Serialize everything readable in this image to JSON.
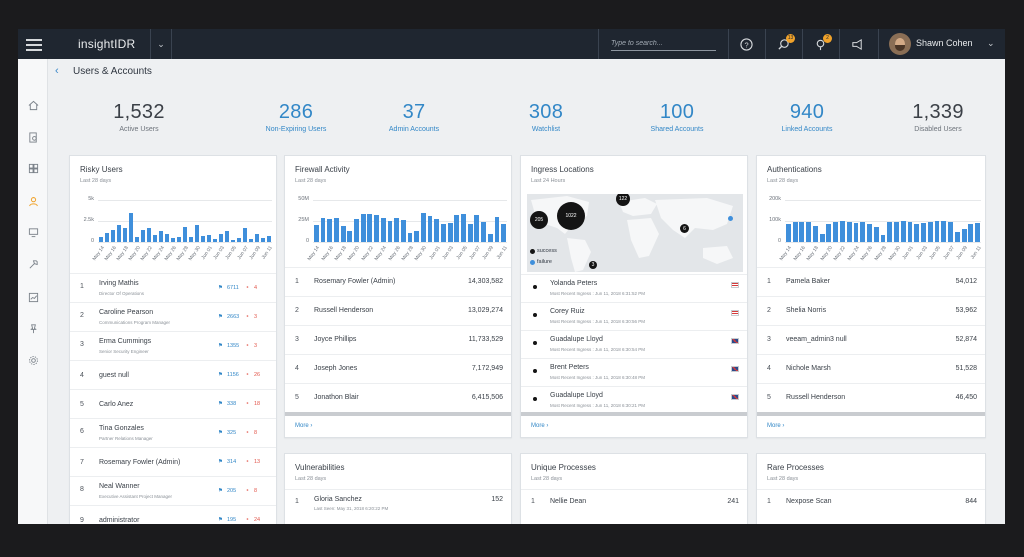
{
  "app": {
    "brand": "insightIDR"
  },
  "search": {
    "placeholder": "Type to search..."
  },
  "notifications": {
    "alerts_count": "13",
    "tips_count": "2"
  },
  "user": {
    "name": "Shawn Cohen"
  },
  "page": {
    "title": "Users & Accounts"
  },
  "stats": [
    {
      "value": "1,532",
      "label": "Active Users"
    },
    {
      "value": "286",
      "label": "Non-Expiring Users"
    },
    {
      "value": "37",
      "label": "Admin Accounts"
    },
    {
      "value": "308",
      "label": "Watchlist"
    },
    {
      "value": "100",
      "label": "Shared Accounts"
    },
    {
      "value": "940",
      "label": "Linked Accounts"
    },
    {
      "value": "1,339",
      "label": "Disabled Users"
    }
  ],
  "risky_users": {
    "title": "Risky Users",
    "subtitle": "Last 28 days",
    "y_ticks": [
      "5k",
      "2.5k",
      "0"
    ],
    "rows": [
      {
        "rank": "1",
        "name": "Irving Mathis",
        "role": "Director Of Operations",
        "flags": "6711",
        "locations": "4"
      },
      {
        "rank": "2",
        "name": "Caroline Pearson",
        "role": "Communications Program Manager",
        "flags": "2663",
        "locations": "3"
      },
      {
        "rank": "3",
        "name": "Erma Cummings",
        "role": "Senior Security Engineer",
        "flags": "1355",
        "locations": "3"
      },
      {
        "rank": "4",
        "name": "guest null",
        "role": "",
        "flags": "1156",
        "locations": "26"
      },
      {
        "rank": "5",
        "name": "Carlo Anez",
        "role": "",
        "flags": "338",
        "locations": "18"
      },
      {
        "rank": "6",
        "name": "Tina Gonzales",
        "role": "Partner Relations Manager",
        "flags": "325",
        "locations": "8"
      },
      {
        "rank": "7",
        "name": "Rosemary Fowler (Admin)",
        "role": "",
        "flags": "314",
        "locations": "13"
      },
      {
        "rank": "8",
        "name": "Neal Wanner",
        "role": "Executive Assistant Project Manager",
        "flags": "205",
        "locations": "8"
      },
      {
        "rank": "9",
        "name": "administrator",
        "role": "",
        "flags": "195",
        "locations": "24"
      }
    ]
  },
  "firewall": {
    "title": "Firewall Activity",
    "subtitle": "Last 28 days",
    "y_ticks": [
      "50M",
      "25M",
      "0"
    ],
    "rows": [
      {
        "rank": "1",
        "name": "Rosemary Fowler (Admin)",
        "value": "14,303,582"
      },
      {
        "rank": "2",
        "name": "Russell Henderson",
        "value": "13,029,274"
      },
      {
        "rank": "3",
        "name": "Joyce Phillips",
        "value": "11,733,529"
      },
      {
        "rank": "4",
        "name": "Joseph Jones",
        "value": "7,172,949"
      },
      {
        "rank": "5",
        "name": "Jonathon Blair",
        "value": "6,415,506"
      }
    ],
    "more": "More"
  },
  "ingress": {
    "title": "Ingress Locations",
    "subtitle": "Last 24 Hours",
    "bubbles": [
      "205",
      "1022",
      "122",
      "6",
      "3"
    ],
    "legend": {
      "success": "success",
      "failure": "failure"
    },
    "rows": [
      {
        "name": "Yolanda Peters",
        "detail": "Most Recent Ingress : Jun 11, 2018 6:31:52 PM"
      },
      {
        "name": "Corey Ruiz",
        "detail": "Most Recent Ingress : Jun 11, 2018 6:30:56 PM"
      },
      {
        "name": "Guadalupe Lloyd",
        "detail": "Most Recent Ingress : Jun 11, 2018 6:30:54 PM"
      },
      {
        "name": "Brent Peters",
        "detail": "Most Recent Ingress : Jun 11, 2018 6:30:48 PM"
      },
      {
        "name": "Guadalupe Lloyd",
        "detail": "Most Recent Ingress : Jun 11, 2018 6:30:21 PM"
      }
    ],
    "more": "More"
  },
  "authentications": {
    "title": "Authentications",
    "subtitle": "Last 28 days",
    "y_ticks": [
      "200k",
      "100k",
      "0"
    ],
    "rows": [
      {
        "rank": "1",
        "name": "Pamela Baker",
        "value": "54,012"
      },
      {
        "rank": "2",
        "name": "Shelia Norris",
        "value": "53,962"
      },
      {
        "rank": "3",
        "name": "veeam_admin3 null",
        "value": "52,874"
      },
      {
        "rank": "4",
        "name": "Nichole Marsh",
        "value": "51,528"
      },
      {
        "rank": "5",
        "name": "Russell Henderson",
        "value": "46,450"
      }
    ],
    "more": "More"
  },
  "vulnerabilities": {
    "title": "Vulnerabilities",
    "subtitle": "Last 28 days",
    "rows": [
      {
        "rank": "1",
        "name": "Gloria Sanchez",
        "detail": "Last Seen: May 31, 2018 6:20:22 PM",
        "value": "152"
      }
    ]
  },
  "unique_processes": {
    "title": "Unique Processes",
    "subtitle": "Last 28 days",
    "rows": [
      {
        "rank": "1",
        "name": "Nellie Dean",
        "value": "241"
      }
    ]
  },
  "rare_processes": {
    "title": "Rare Processes",
    "subtitle": "Last 28 days",
    "rows": [
      {
        "rank": "1",
        "name": "Nexpose Scan",
        "value": "844"
      }
    ]
  },
  "chart_data": [
    {
      "type": "bar",
      "title": "Risky Users",
      "categories": [
        "May 14",
        "May 15",
        "May 16",
        "May 17",
        "May 18",
        "May 19",
        "May 20",
        "May 21",
        "May 22",
        "May 23",
        "May 24",
        "May 25",
        "May 26",
        "May 27",
        "May 28",
        "May 29",
        "May 30",
        "May 31",
        "Jun 01",
        "Jun 02",
        "Jun 03",
        "Jun 04",
        "Jun 05",
        "Jun 06",
        "Jun 07",
        "Jun 08",
        "Jun 09",
        "Jun 10",
        "Jun 11"
      ],
      "values": [
        600,
        1100,
        1400,
        2000,
        1700,
        3400,
        600,
        1400,
        1700,
        800,
        1300,
        1000,
        500,
        600,
        1800,
        600,
        2000,
        700,
        800,
        300,
        900,
        1300,
        200,
        500,
        1700,
        300,
        900,
        500,
        700
      ],
      "ylim": [
        0,
        5000
      ]
    },
    {
      "type": "bar",
      "title": "Firewall Activity",
      "categories": [
        "May 14",
        "May 15",
        "May 16",
        "May 17",
        "May 18",
        "May 19",
        "May 20",
        "May 21",
        "May 22",
        "May 23",
        "May 24",
        "May 25",
        "May 26",
        "May 27",
        "May 28",
        "May 29",
        "May 30",
        "May 31",
        "Jun 01",
        "Jun 02",
        "Jun 03",
        "Jun 04",
        "Jun 05",
        "Jun 06",
        "Jun 07",
        "Jun 08",
        "Jun 09",
        "Jun 10",
        "Jun 11"
      ],
      "values": [
        20000000,
        28000000,
        27000000,
        28000000,
        19000000,
        13000000,
        27000000,
        33000000,
        33000000,
        32000000,
        28000000,
        25000000,
        28000000,
        26000000,
        11000000,
        13000000,
        34000000,
        31000000,
        27000000,
        21000000,
        23000000,
        32000000,
        33000000,
        22000000,
        32000000,
        24000000,
        9000000,
        30000000,
        22000000
      ],
      "ylim": [
        0,
        50000000
      ]
    },
    {
      "type": "bar",
      "title": "Authentications",
      "categories": [
        "May 14",
        "May 15",
        "May 16",
        "May 17",
        "May 18",
        "May 19",
        "May 20",
        "May 21",
        "May 22",
        "May 23",
        "May 24",
        "May 25",
        "May 26",
        "May 27",
        "May 28",
        "May 29",
        "May 30",
        "May 31",
        "Jun 01",
        "Jun 02",
        "Jun 03",
        "Jun 04",
        "Jun 05",
        "Jun 06",
        "Jun 07",
        "Jun 08",
        "Jun 09",
        "Jun 10",
        "Jun 11"
      ],
      "values": [
        85000,
        95000,
        93000,
        95000,
        75000,
        40000,
        88000,
        97000,
        100000,
        96000,
        92000,
        96000,
        88000,
        70000,
        32000,
        95000,
        96000,
        98000,
        95000,
        86000,
        92000,
        96000,
        100000,
        98000,
        95000,
        50000,
        62000,
        85000,
        90000
      ],
      "ylim": [
        0,
        200000
      ]
    }
  ]
}
